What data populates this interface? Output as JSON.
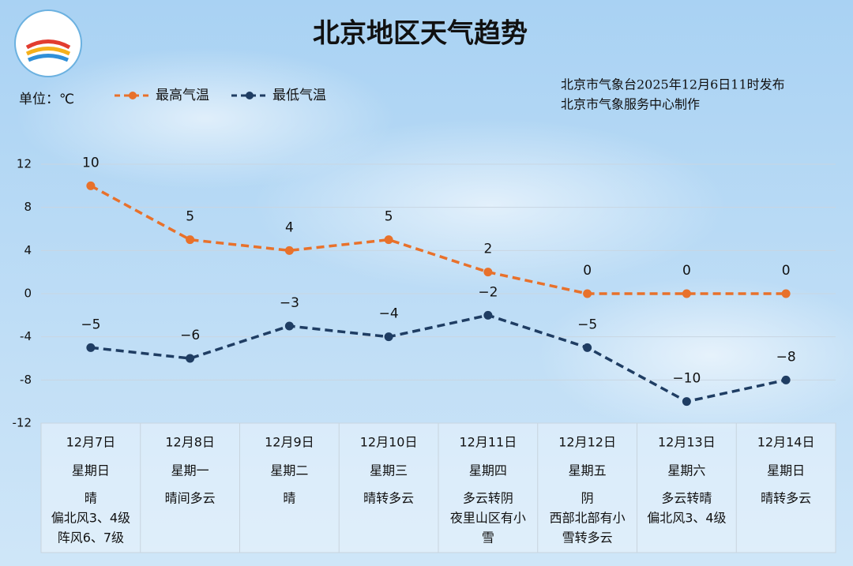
{
  "chart_data": {
    "type": "line",
    "title": "北京地区天气趋势",
    "unit_label": "单位：℃",
    "source_lines": [
      "北京市气象台2025年12月6日11时发布",
      "北京市气象服务中心制作"
    ],
    "categories": [
      "12月7日",
      "12月8日",
      "12月9日",
      "12月10日",
      "12月11日",
      "12月12日",
      "12月13日",
      "12月14日"
    ],
    "weekdays": [
      "星期日",
      "星期一",
      "星期二",
      "星期三",
      "星期四",
      "星期五",
      "星期六",
      "星期日"
    ],
    "weather": [
      [
        "晴",
        "偏北风3、4级",
        "阵风6、7级"
      ],
      [
        "晴间多云"
      ],
      [
        "晴"
      ],
      [
        "晴转多云"
      ],
      [
        "多云转阴",
        "夜里山区有小",
        "雪"
      ],
      [
        "阴",
        "西部北部有小",
        "雪转多云"
      ],
      [
        "多云转晴",
        "偏北风3、4级"
      ],
      [
        "晴转多云"
      ]
    ],
    "series": [
      {
        "name": "最高气温",
        "color": "#e8712b",
        "values": [
          10,
          5,
          4,
          5,
          2,
          0,
          0,
          0
        ]
      },
      {
        "name": "最低气温",
        "color": "#1f3d63",
        "values": [
          -5,
          -6,
          -3,
          -4,
          -2,
          -5,
          -10,
          -8
        ],
        "value_labels": [
          "−5",
          "−6",
          "−3",
          "−4",
          "−2",
          "−5",
          "−10",
          "−8"
        ]
      }
    ],
    "ylim": [
      -12,
      12
    ],
    "yticks": [
      12,
      8,
      4,
      0,
      -4,
      -8,
      -12
    ],
    "grid": true,
    "dashed": true
  }
}
